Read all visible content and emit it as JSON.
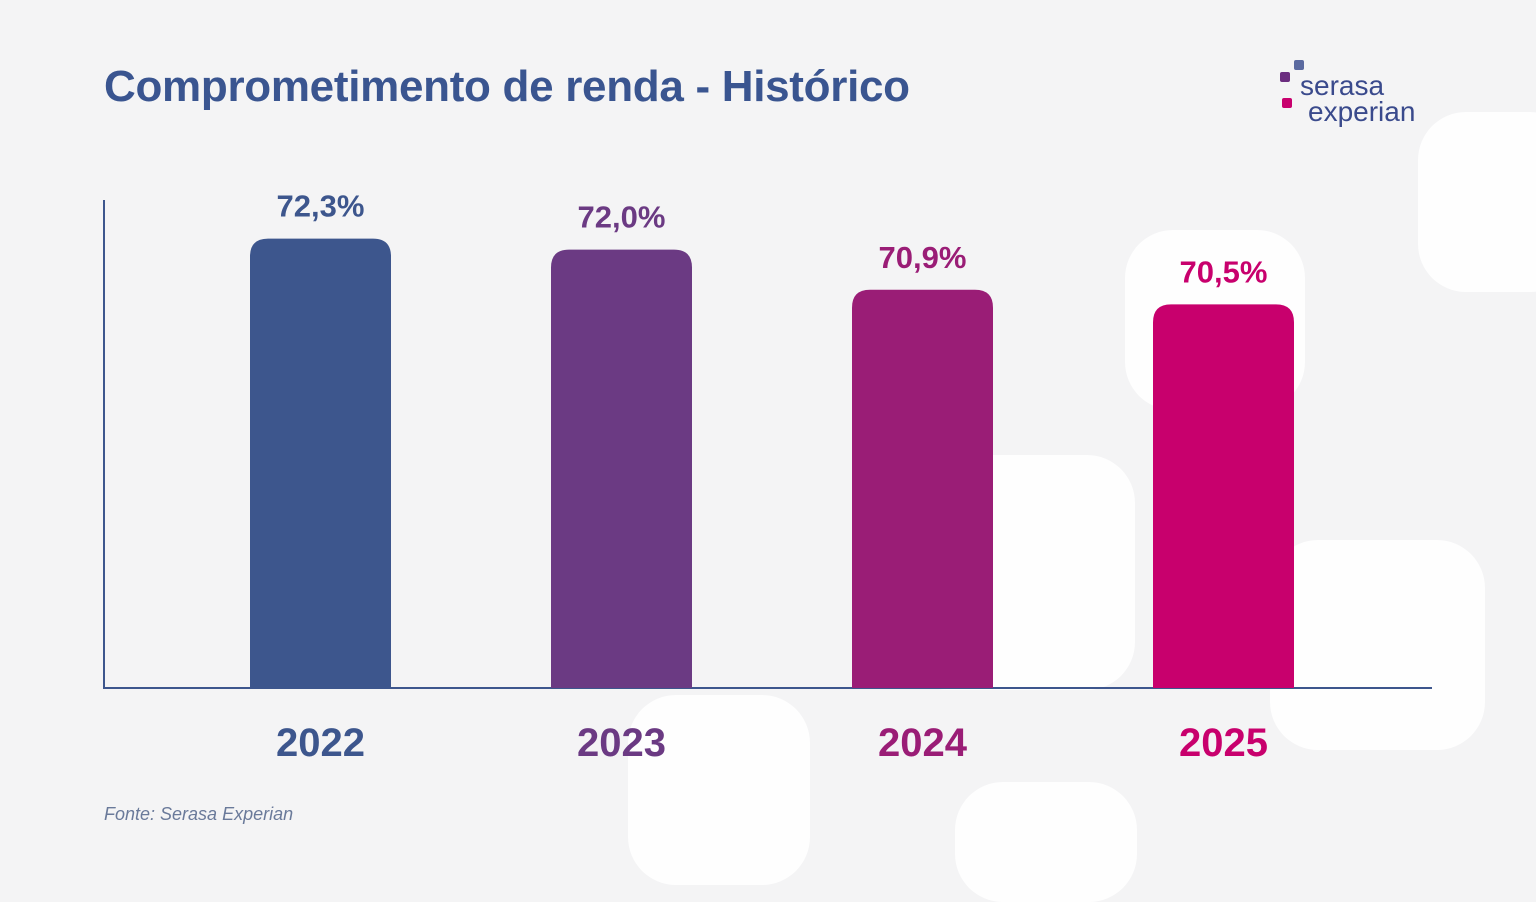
{
  "header": {
    "title": "Comprometimento de renda - Histórico"
  },
  "logo": {
    "line1": "serasa",
    "line2": "experian",
    "squares": [
      "#5b6aa0",
      "#6b2d7f",
      "#c8006e"
    ]
  },
  "footer": {
    "source": "Fonte: Serasa Experian"
  },
  "chart_data": {
    "type": "bar",
    "title": "Comprometimento de renda - Histórico",
    "categories": [
      "2022",
      "2023",
      "2024",
      "2025"
    ],
    "values": [
      72.3,
      72.0,
      70.9,
      70.5
    ],
    "value_labels": [
      "72,3%",
      "72,0%",
      "70,9%",
      "70,5%"
    ],
    "colors": [
      "#3d568d",
      "#6b3a83",
      "#9a1d76",
      "#c8006d"
    ],
    "xlabel": "",
    "ylabel": "",
    "ylim": [
      60,
      75
    ],
    "grid": false,
    "legend": "none"
  }
}
